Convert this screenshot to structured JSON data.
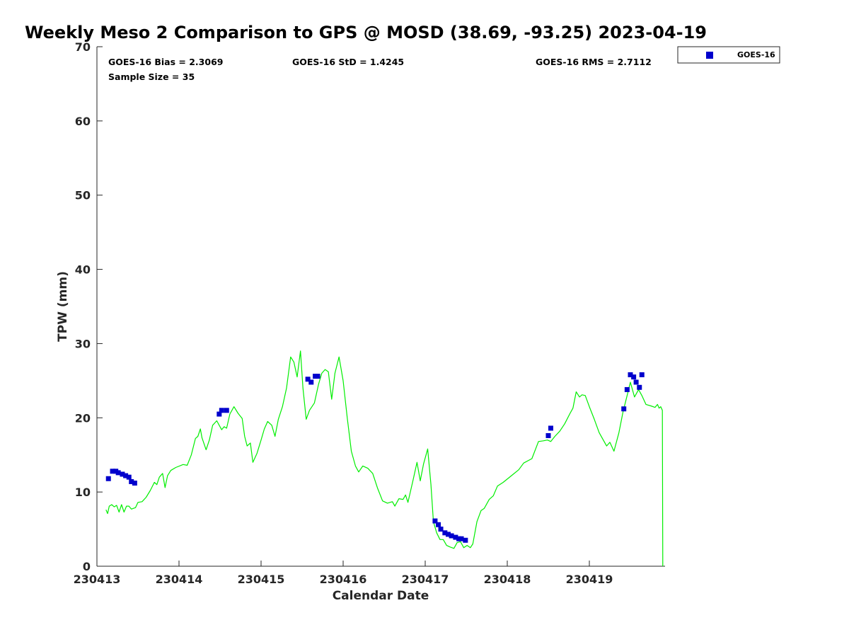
{
  "chart_data": {
    "type": "scatter",
    "title": "Weekly Meso 2 Comparison to GPS @ MOSD (38.69, -93.25) 2023-04-19",
    "xlabel": "Calendar Date",
    "ylabel": "TPW (mm)",
    "x_unit": "days since 230413 00Z",
    "xlim": [
      230413,
      230419.9
    ],
    "xticks": [
      "230413",
      "230414",
      "230415",
      "230416",
      "230417",
      "230418",
      "230419"
    ],
    "ylim": [
      0,
      70
    ],
    "yticks": [
      0,
      10,
      20,
      30,
      40,
      50,
      60,
      70
    ],
    "grid": false,
    "legend_position": "top-right",
    "stats": [
      "GOES-16 Bias = 2.3069",
      "Sample Size = 35",
      "GOES-16 StD = 1.4245",
      "GOES-16 RMS = 2.7112"
    ],
    "series": [
      {
        "name": "GOES-16",
        "kind": "scatter",
        "color": "#0000cc",
        "marker": "square",
        "points": [
          [
            230413.14,
            11.8
          ],
          [
            230413.19,
            12.8
          ],
          [
            230413.23,
            12.8
          ],
          [
            230413.26,
            12.6
          ],
          [
            230413.31,
            12.4
          ],
          [
            230413.35,
            12.2
          ],
          [
            230413.39,
            12.0
          ],
          [
            230413.42,
            11.4
          ],
          [
            230413.46,
            11.2
          ],
          [
            230414.49,
            20.5
          ],
          [
            230414.52,
            21.0
          ],
          [
            230414.58,
            21.0
          ],
          [
            230415.57,
            25.2
          ],
          [
            230415.61,
            24.8
          ],
          [
            230415.66,
            25.6
          ],
          [
            230415.69,
            25.6
          ],
          [
            230417.12,
            6.1
          ],
          [
            230417.16,
            5.6
          ],
          [
            230417.19,
            5.0
          ],
          [
            230417.24,
            4.5
          ],
          [
            230417.28,
            4.3
          ],
          [
            230417.32,
            4.1
          ],
          [
            230417.37,
            3.9
          ],
          [
            230417.41,
            3.7
          ],
          [
            230417.44,
            3.7
          ],
          [
            230417.49,
            3.5
          ],
          [
            230418.5,
            17.6
          ],
          [
            230418.53,
            18.6
          ],
          [
            230419.42,
            21.2
          ],
          [
            230419.46,
            23.8
          ],
          [
            230419.5,
            25.8
          ],
          [
            230419.54,
            25.5
          ],
          [
            230419.57,
            24.8
          ],
          [
            230419.61,
            24.1
          ],
          [
            230419.64,
            25.8
          ]
        ]
      },
      {
        "kind": "line",
        "color": "#00ee00",
        "points": [
          [
            230413.11,
            7.6
          ],
          [
            230413.13,
            7.1
          ],
          [
            230413.15,
            8.1
          ],
          [
            230413.18,
            8.3
          ],
          [
            230413.21,
            8.0
          ],
          [
            230413.24,
            8.2
          ],
          [
            230413.27,
            7.3
          ],
          [
            230413.3,
            8.3
          ],
          [
            230413.33,
            7.3
          ],
          [
            230413.36,
            8.1
          ],
          [
            230413.39,
            8.1
          ],
          [
            230413.42,
            7.7
          ],
          [
            230413.47,
            7.9
          ],
          [
            230413.5,
            8.6
          ],
          [
            230413.55,
            8.7
          ],
          [
            230413.6,
            9.3
          ],
          [
            230413.65,
            10.2
          ],
          [
            230413.7,
            11.3
          ],
          [
            230413.73,
            11.0
          ],
          [
            230413.76,
            12.0
          ],
          [
            230413.8,
            12.5
          ],
          [
            230413.83,
            10.6
          ],
          [
            230413.86,
            12.2
          ],
          [
            230413.9,
            12.9
          ],
          [
            230413.96,
            13.3
          ],
          [
            230414.05,
            13.7
          ],
          [
            230414.1,
            13.6
          ],
          [
            230414.15,
            15.0
          ],
          [
            230414.2,
            17.2
          ],
          [
            230414.23,
            17.5
          ],
          [
            230414.26,
            18.5
          ],
          [
            230414.28,
            17.3
          ],
          [
            230414.33,
            15.7
          ],
          [
            230414.37,
            17.0
          ],
          [
            230414.41,
            19.0
          ],
          [
            230414.46,
            19.6
          ],
          [
            230414.49,
            19.0
          ],
          [
            230414.52,
            18.4
          ],
          [
            230414.55,
            18.8
          ],
          [
            230414.58,
            18.6
          ],
          [
            230414.62,
            20.5
          ],
          [
            230414.67,
            21.5
          ],
          [
            230414.72,
            20.6
          ],
          [
            230414.77,
            19.9
          ],
          [
            230414.8,
            17.5
          ],
          [
            230414.83,
            16.2
          ],
          [
            230414.87,
            16.6
          ],
          [
            230414.9,
            14.0
          ],
          [
            230414.95,
            15.2
          ],
          [
            230415.0,
            17.0
          ],
          [
            230415.04,
            18.5
          ],
          [
            230415.08,
            19.5
          ],
          [
            230415.13,
            19.0
          ],
          [
            230415.17,
            17.5
          ],
          [
            230415.21,
            19.8
          ],
          [
            230415.26,
            21.5
          ],
          [
            230415.31,
            24.0
          ],
          [
            230415.36,
            28.2
          ],
          [
            230415.4,
            27.5
          ],
          [
            230415.44,
            25.5
          ],
          [
            230415.48,
            29.0
          ],
          [
            230415.51,
            24.0
          ],
          [
            230415.55,
            19.8
          ],
          [
            230415.59,
            21.0
          ],
          [
            230415.65,
            22.0
          ],
          [
            230415.7,
            24.5
          ],
          [
            230415.74,
            26.0
          ],
          [
            230415.78,
            26.5
          ],
          [
            230415.82,
            26.2
          ],
          [
            230415.86,
            22.5
          ],
          [
            230415.9,
            26.0
          ],
          [
            230415.95,
            28.2
          ],
          [
            230416.0,
            25.0
          ],
          [
            230416.05,
            20.0
          ],
          [
            230416.1,
            15.5
          ],
          [
            230416.15,
            13.5
          ],
          [
            230416.19,
            12.7
          ],
          [
            230416.24,
            13.5
          ],
          [
            230416.3,
            13.2
          ],
          [
            230416.36,
            12.5
          ],
          [
            230416.42,
            10.5
          ],
          [
            230416.48,
            8.8
          ],
          [
            230416.54,
            8.5
          ],
          [
            230416.6,
            8.7
          ],
          [
            230416.63,
            8.1
          ],
          [
            230416.68,
            9.1
          ],
          [
            230416.73,
            9.0
          ],
          [
            230416.76,
            9.6
          ],
          [
            230416.79,
            8.6
          ],
          [
            230416.85,
            11.5
          ],
          [
            230416.9,
            14.0
          ],
          [
            230416.94,
            11.5
          ],
          [
            230416.98,
            13.8
          ],
          [
            230417.03,
            15.8
          ],
          [
            230417.07,
            11.0
          ],
          [
            230417.1,
            6.0
          ],
          [
            230417.14,
            4.5
          ],
          [
            230417.18,
            3.6
          ],
          [
            230417.22,
            3.6
          ],
          [
            230417.26,
            2.8
          ],
          [
            230417.3,
            2.6
          ],
          [
            230417.35,
            2.4
          ],
          [
            230417.39,
            3.2
          ],
          [
            230417.43,
            3.3
          ],
          [
            230417.47,
            2.5
          ],
          [
            230417.51,
            2.8
          ],
          [
            230417.55,
            2.5
          ],
          [
            230417.58,
            3.0
          ],
          [
            230417.63,
            6.0
          ],
          [
            230417.68,
            7.5
          ],
          [
            230417.72,
            7.8
          ],
          [
            230417.78,
            9.0
          ],
          [
            230417.83,
            9.5
          ],
          [
            230417.88,
            10.8
          ],
          [
            230417.95,
            11.3
          ],
          [
            230418.05,
            12.2
          ],
          [
            230418.14,
            13.0
          ],
          [
            230418.2,
            13.9
          ],
          [
            230418.3,
            14.5
          ],
          [
            230418.38,
            16.8
          ],
          [
            230418.44,
            16.9
          ],
          [
            230418.49,
            17.0
          ],
          [
            230418.53,
            16.8
          ],
          [
            230418.58,
            17.5
          ],
          [
            230418.64,
            18.2
          ],
          [
            230418.7,
            19.2
          ],
          [
            230418.76,
            20.5
          ],
          [
            230418.8,
            21.3
          ],
          [
            230418.84,
            23.5
          ],
          [
            230418.88,
            22.8
          ],
          [
            230418.91,
            23.1
          ],
          [
            230418.95,
            23.0
          ],
          [
            230419.0,
            21.5
          ],
          [
            230419.06,
            19.8
          ],
          [
            230419.12,
            18.0
          ],
          [
            230419.17,
            17.0
          ],
          [
            230419.21,
            16.2
          ],
          [
            230419.25,
            16.7
          ],
          [
            230419.3,
            15.5
          ],
          [
            230419.36,
            18.0
          ],
          [
            230419.41,
            20.8
          ],
          [
            230419.46,
            23.0
          ],
          [
            230419.5,
            24.8
          ],
          [
            230419.55,
            22.8
          ],
          [
            230419.6,
            23.8
          ],
          [
            230419.64,
            23.0
          ],
          [
            230419.69,
            21.8
          ],
          [
            230419.75,
            21.6
          ],
          [
            230419.8,
            21.4
          ],
          [
            230419.83,
            21.8
          ],
          [
            230419.85,
            21.3
          ],
          [
            230419.87,
            21.5
          ],
          [
            230419.89,
            21.0
          ],
          [
            230419.895,
            0.0
          ]
        ]
      }
    ]
  }
}
